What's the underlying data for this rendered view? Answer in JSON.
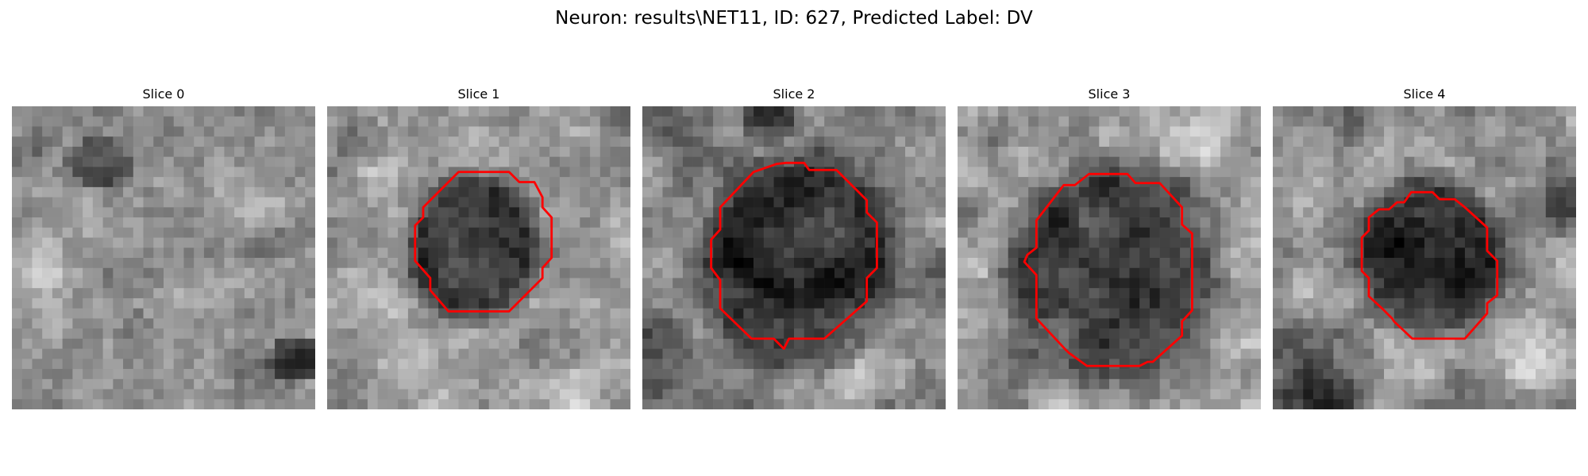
{
  "figure": {
    "title": "Neuron: results\\NET11, ID: 627, Predicted Label: DV",
    "outline_color": "#ff0000"
  },
  "slices": [
    {
      "title": "Slice 0",
      "has_outline": false
    },
    {
      "title": "Slice 1",
      "has_outline": true
    },
    {
      "title": "Slice 2",
      "has_outline": true
    },
    {
      "title": "Slice 3",
      "has_outline": true
    },
    {
      "title": "Slice 4",
      "has_outline": true
    }
  ]
}
